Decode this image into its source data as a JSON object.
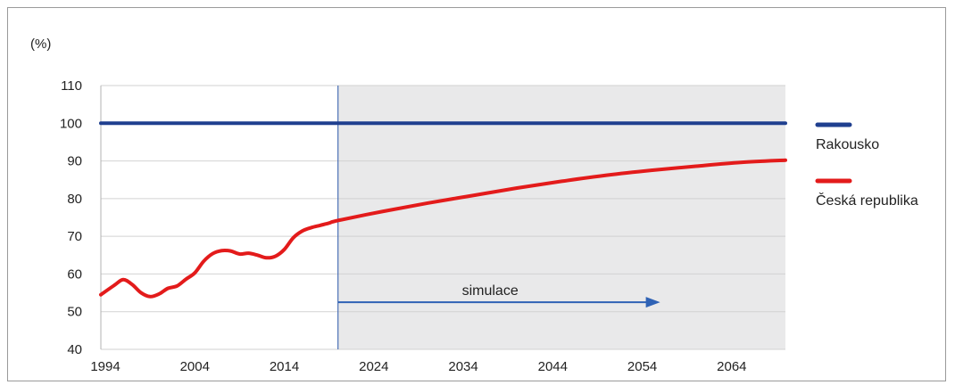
{
  "chart_data": {
    "type": "line",
    "unit_label": "(%)",
    "ylim": [
      40,
      110
    ],
    "y_ticks": [
      "110",
      "100",
      "90",
      "80",
      "70",
      "60",
      "50",
      "40"
    ],
    "x_ticks": [
      "1994",
      "2004",
      "2014",
      "2024",
      "2034",
      "2044",
      "2054",
      "2064"
    ],
    "x_range": [
      1993.5,
      2070
    ],
    "simulation_start": 2020,
    "simulation_label": "simulace",
    "simulation_arrow_end": 2056,
    "grid": true,
    "legend_position": "right",
    "series": [
      {
        "name": "Rakousko",
        "color": "#1f3f8f",
        "x": [
          1993.5,
          2070
        ],
        "values": [
          100,
          100
        ]
      },
      {
        "name": "Česká republika",
        "color": "#e31b1b",
        "x": [
          1993.5,
          1995,
          1996,
          1997,
          1998,
          1999,
          2000,
          2001,
          2002,
          2003,
          2004,
          2005,
          2006,
          2007,
          2008,
          2009,
          2010,
          2011,
          2012,
          2013,
          2014,
          2015,
          2016,
          2017,
          2018,
          2019,
          2020,
          2025,
          2030,
          2035,
          2040,
          2045,
          2050,
          2055,
          2060,
          2065,
          2070
        ],
        "values": [
          54.5,
          57.0,
          58.5,
          57.2,
          55.0,
          54.0,
          54.7,
          56.2,
          56.8,
          58.6,
          60.3,
          63.4,
          65.4,
          66.2,
          66.1,
          65.3,
          65.5,
          65.0,
          64.3,
          64.7,
          66.5,
          69.6,
          71.4,
          72.3,
          72.9,
          73.5,
          74.2,
          76.6,
          78.8,
          80.8,
          82.8,
          84.6,
          86.2,
          87.5,
          88.6,
          89.6,
          90.2
        ]
      }
    ]
  }
}
